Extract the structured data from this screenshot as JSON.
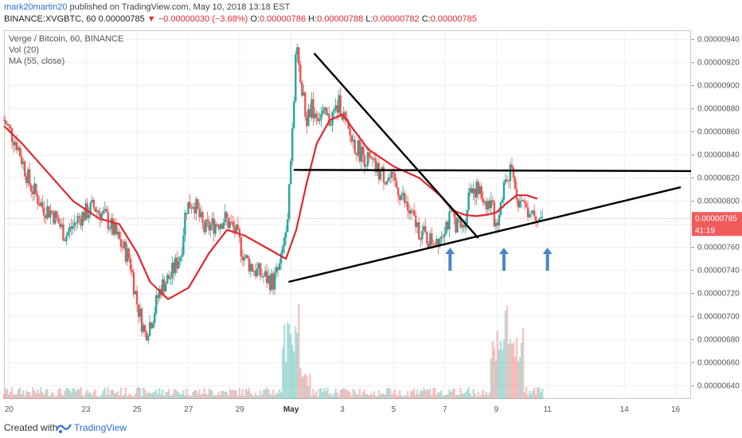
{
  "header": {
    "author": "mark20martin20",
    "published_text": "published on TradingView.com, May 10, 2018 13:18 EST",
    "symbol": "BINANCE:XVGBTC, 60",
    "last": "0.00000785",
    "change": "▼ −0.00000030 (−3.68%)",
    "o_label": "O:",
    "o_value": "0.00000786",
    "h_label": "H:",
    "h_value": "0.00000788",
    "l_label": "L:",
    "l_value": "0.00000782",
    "c_label": "C:",
    "c_value": "0.00000785"
  },
  "legend": {
    "title": "Verge / Bitcoin, 60, BINANCE",
    "vol": "Vol (20)",
    "ma": "MA (55, close)"
  },
  "footer": {
    "created_with": "Created with",
    "brand": "TradingView"
  },
  "colors": {
    "up": "#26a69a",
    "down": "#ef5350",
    "ma": "#e0282e",
    "accent": "#2a6fdb",
    "arrow": "#4a86c5",
    "price_label": "#f05c5c"
  },
  "chart_data": {
    "type": "candlestick",
    "x_ticks": [
      "20",
      "23",
      "25",
      "27",
      "29",
      "May",
      "3",
      "5",
      "7",
      "9",
      "11",
      "14",
      "16"
    ],
    "x_tick_days": [
      20,
      23,
      25,
      27,
      29,
      31,
      33,
      35,
      37,
      39,
      41,
      44,
      46
    ],
    "x_range_days": [
      19.8,
      46.6
    ],
    "y_ticks": [
      "0.00000940",
      "0.00000920",
      "0.00000900",
      "0.00000880",
      "0.00000860",
      "0.00000840",
      "0.00000820",
      "0.00000800",
      "0.00000780",
      "0.00000760",
      "0.00000740",
      "0.00000720",
      "0.00000700",
      "0.00000680",
      "0.00000660",
      "0.00000640"
    ],
    "y_range": [
      6.3e-06,
      9.45e-06
    ],
    "close_series_days": [
      19.8,
      20.3,
      20.8,
      21.3,
      21.7,
      22.2,
      22.7,
      23.3,
      23.8,
      24.3,
      24.7,
      25.0,
      25.3,
      25.6,
      25.9,
      26.3,
      26.7,
      26.9,
      27.2,
      27.6,
      28.0,
      28.4,
      28.8,
      29.2,
      29.6,
      29.9,
      30.3,
      30.6,
      30.9,
      31.0,
      31.2,
      31.4,
      31.6,
      31.8,
      32.1,
      32.5,
      32.9,
      33.2,
      33.6,
      34.0,
      34.4,
      34.8,
      35.2,
      35.6,
      36.0,
      36.4,
      36.8,
      37.0,
      37.3,
      37.7,
      38.0,
      38.4,
      38.8,
      39.0,
      39.3,
      39.6,
      39.9,
      40.2,
      40.6,
      40.8
    ],
    "close_series_values": [
      8.7,
      8.5,
      8.15,
      7.95,
      7.9,
      7.7,
      7.85,
      7.95,
      7.85,
      7.65,
      7.5,
      7.1,
      6.85,
      7.0,
      7.25,
      7.35,
      7.55,
      7.95,
      8.0,
      7.75,
      7.8,
      7.85,
      7.75,
      7.5,
      7.4,
      7.35,
      7.3,
      7.45,
      8.0,
      8.4,
      9.3,
      9.0,
      8.7,
      8.8,
      8.75,
      8.7,
      8.85,
      8.6,
      8.45,
      8.35,
      8.25,
      8.2,
      8.1,
      7.9,
      7.75,
      7.65,
      7.7,
      7.8,
      7.85,
      7.75,
      8.15,
      8.05,
      7.95,
      7.8,
      8.15,
      8.25,
      8.0,
      7.95,
      7.9,
      7.85
    ],
    "ma55_days": [
      19.8,
      20.5,
      21.5,
      22.5,
      23.5,
      24.3,
      25.0,
      25.5,
      26.2,
      27.0,
      27.8,
      28.5,
      29.2,
      30.0,
      30.8,
      31.2,
      31.6,
      32.0,
      32.5,
      33.0,
      33.5,
      34.0,
      35.0,
      36.0,
      36.8,
      37.3,
      37.8,
      38.2,
      38.6,
      39.0,
      39.4,
      39.8,
      40.2,
      40.6
    ],
    "ma55_values": [
      8.65,
      8.5,
      8.25,
      8.0,
      7.85,
      7.8,
      7.55,
      7.3,
      7.15,
      7.25,
      7.55,
      7.75,
      7.7,
      7.6,
      7.5,
      7.75,
      8.15,
      8.5,
      8.7,
      8.75,
      8.6,
      8.45,
      8.3,
      8.2,
      8.05,
      7.92,
      7.88,
      7.87,
      7.88,
      7.9,
      7.98,
      8.05,
      8.05,
      8.02
    ],
    "ma55_unit": "x 1e-6 BTC",
    "volume_spikes_days": [
      31.0,
      39.1,
      39.7
    ],
    "annotations": {
      "trend_lines": [
        {
          "name": "descending-resistance",
          "from": [
            31.9,
            9.28
          ],
          "to": [
            38.3,
            7.68
          ]
        },
        {
          "name": "horizontal-resistance",
          "from": [
            31.1,
            8.27
          ],
          "to": [
            46.6,
            8.26
          ]
        },
        {
          "name": "ascending-support",
          "from": [
            30.9,
            7.3
          ],
          "to": [
            46.2,
            8.12
          ]
        }
      ],
      "arrow_days": [
        37.2,
        39.3,
        41.0
      ],
      "current_price_label": "0.00000785",
      "countdown_label": "41:19"
    }
  }
}
